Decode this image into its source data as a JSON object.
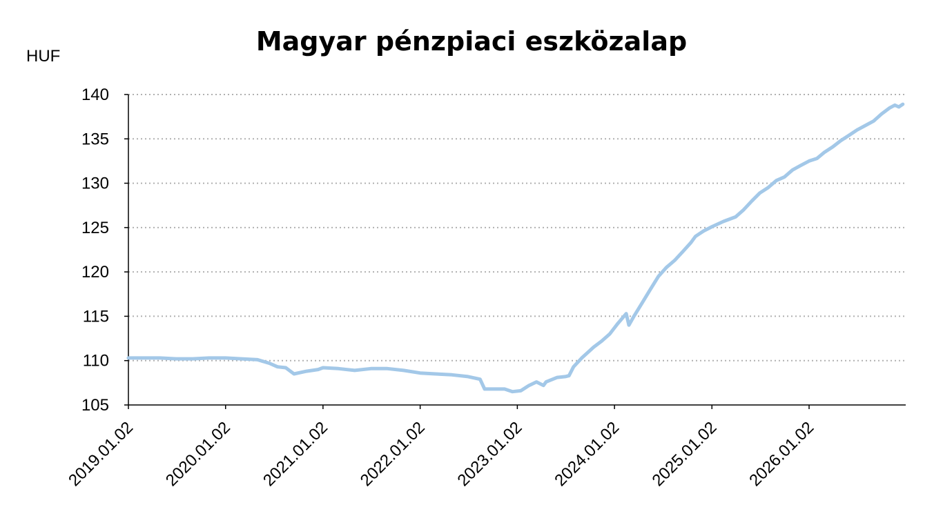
{
  "chart_data": {
    "type": "line",
    "title": "Magyar pénzpiaci eszközalap",
    "ylabel": "HUF",
    "xlabel": "",
    "ylim": [
      105,
      140
    ],
    "yticks": [
      "105",
      "110",
      "115",
      "120",
      "125",
      "130",
      "135",
      "140"
    ],
    "xticks": [
      "2019.01.02",
      "2020.01.02",
      "2021.01.02",
      "2022.01.02",
      "2023.01.02",
      "2024.01.02",
      "2025.01.02",
      "2026.01.02"
    ],
    "grid": "horizontal dotted",
    "legend": "none",
    "line_color": "#a3c8e8",
    "series": [
      {
        "values": [
          [
            "2019.01.02",
            110.3
          ],
          [
            "2019.03.01",
            110.3
          ],
          [
            "2019.05.01",
            110.3
          ],
          [
            "2019.07.01",
            110.2
          ],
          [
            "2019.09.01",
            110.2
          ],
          [
            "2019.11.01",
            110.3
          ],
          [
            "2020.01.02",
            110.3
          ],
          [
            "2020.03.01",
            110.2
          ],
          [
            "2020.05.01",
            110.1
          ],
          [
            "2020.06.15",
            109.7
          ],
          [
            "2020.07.15",
            109.3
          ],
          [
            "2020.08.15",
            109.2
          ],
          [
            "2020.09.15",
            108.5
          ],
          [
            "2020.11.01",
            108.8
          ],
          [
            "2020.12.15",
            109.0
          ],
          [
            "2021.01.02",
            109.2
          ],
          [
            "2021.03.01",
            109.1
          ],
          [
            "2021.05.01",
            108.9
          ],
          [
            "2021.07.01",
            109.1
          ],
          [
            "2021.09.01",
            109.1
          ],
          [
            "2021.11.01",
            108.9
          ],
          [
            "2022.01.02",
            108.6
          ],
          [
            "2022.03.01",
            108.5
          ],
          [
            "2022.05.01",
            108.4
          ],
          [
            "2022.07.01",
            108.2
          ],
          [
            "2022.08.15",
            107.9
          ],
          [
            "2022.09.01",
            106.8
          ],
          [
            "2022.10.15",
            106.8
          ],
          [
            "2022.11.15",
            106.8
          ],
          [
            "2022.12.15",
            106.5
          ],
          [
            "2023.01.15",
            106.6
          ],
          [
            "2023.02.15",
            107.2
          ],
          [
            "2023.03.15",
            107.6
          ],
          [
            "2023.04.10",
            107.2
          ],
          [
            "2023.04.20",
            107.6
          ],
          [
            "2023.06.01",
            108.1
          ],
          [
            "2023.07.01",
            108.2
          ],
          [
            "2023.07.15",
            108.3
          ],
          [
            "2023.08.01",
            109.3
          ],
          [
            "2023.09.01",
            110.3
          ],
          [
            "2023.10.15",
            111.5
          ],
          [
            "2023.11.15",
            112.2
          ],
          [
            "2023.12.15",
            113.0
          ],
          [
            "2024.01.15",
            114.2
          ],
          [
            "2024.02.15",
            115.3
          ],
          [
            "2024.02.25",
            114.0
          ],
          [
            "2024.03.15",
            115.0
          ],
          [
            "2024.04.15",
            116.5
          ],
          [
            "2024.05.15",
            118.0
          ],
          [
            "2024.06.15",
            119.5
          ],
          [
            "2024.07.15",
            120.5
          ],
          [
            "2024.08.15",
            121.3
          ],
          [
            "2024.09.15",
            122.3
          ],
          [
            "2024.10.15",
            123.3
          ],
          [
            "2024.11.01",
            124.0
          ],
          [
            "2024.12.01",
            124.6
          ],
          [
            "2025.01.02",
            125.1
          ],
          [
            "2025.02.15",
            125.7
          ],
          [
            "2025.04.01",
            126.2
          ],
          [
            "2025.05.01",
            127.0
          ],
          [
            "2025.06.01",
            128.0
          ],
          [
            "2025.07.01",
            128.9
          ],
          [
            "2025.08.01",
            129.5
          ],
          [
            "2025.09.01",
            130.3
          ],
          [
            "2025.10.01",
            130.7
          ],
          [
            "2025.11.01",
            131.5
          ],
          [
            "2025.12.01",
            132.0
          ],
          [
            "2026.01.02",
            132.5
          ],
          [
            "2026.02.01",
            132.8
          ],
          [
            "2026.03.01",
            133.5
          ],
          [
            "2026.04.01",
            134.1
          ],
          [
            "2026.05.01",
            134.8
          ],
          [
            "2026.06.01",
            135.4
          ],
          [
            "2026.07.01",
            136.0
          ],
          [
            "2026.08.01",
            136.5
          ],
          [
            "2026.09.01",
            137.0
          ],
          [
            "2026.10.01",
            137.8
          ],
          [
            "2026.11.01",
            138.5
          ],
          [
            "2026.11.20",
            138.8
          ],
          [
            "2026.12.05",
            138.6
          ],
          [
            "2026.12.20",
            138.9
          ]
        ]
      }
    ]
  }
}
